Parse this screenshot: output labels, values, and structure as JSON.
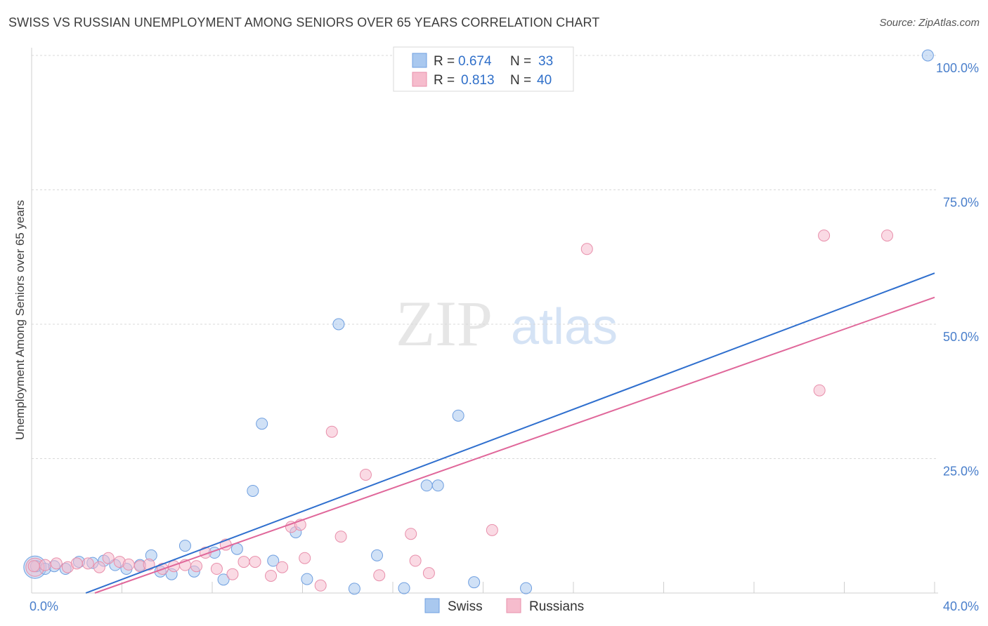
{
  "header": {
    "title": "SWISS VS RUSSIAN UNEMPLOYMENT AMONG SENIORS OVER 65 YEARS CORRELATION CHART",
    "source": "Source: ZipAtlas.com"
  },
  "watermark": {
    "zip": "ZIP",
    "atlas": "atlas"
  },
  "legend": {
    "r_label": "R =",
    "n_label": "N =",
    "items": [
      {
        "name": "Swiss",
        "r": "0.674",
        "n": "33",
        "color": "#a9c8ef"
      },
      {
        "name": "Russians",
        "r": "0.813",
        "n": "40",
        "color": "#f6bccd"
      }
    ]
  },
  "colors": {
    "swiss_fill": "#a9c8ef",
    "swiss_stroke": "#6f9fe0",
    "swiss_line": "#2f6fce",
    "russians_fill": "#f6bccd",
    "russians_stroke": "#e88fab",
    "russians_line": "#e0679a",
    "tick_text": "#4a7fcb",
    "grid": "#d9d9d9"
  },
  "chart_data": {
    "type": "scatter",
    "title": "SWISS VS RUSSIAN UNEMPLOYMENT AMONG SENIORS OVER 65 YEARS CORRELATION CHART",
    "xlabel": "",
    "ylabel": "Unemployment Among Seniors over 65 years",
    "xlim": [
      0,
      40
    ],
    "ylim": [
      0,
      100
    ],
    "x_tick_labels": [
      {
        "value": 0,
        "label": "0.0%"
      },
      {
        "value": 40,
        "label": "40.0%"
      }
    ],
    "y_tick_labels": [
      {
        "value": 25,
        "label": "25.0%"
      },
      {
        "value": 50,
        "label": "50.0%"
      },
      {
        "value": 75,
        "label": "75.0%"
      },
      {
        "value": 100,
        "label": "100.0%"
      }
    ],
    "x_minor_ticks": [
      0,
      4,
      8,
      12,
      16,
      20,
      24,
      28,
      32,
      36,
      40
    ],
    "y_gridlines": [
      25,
      50,
      75,
      100
    ],
    "series": [
      {
        "name": "Swiss",
        "points": [
          [
            0.2,
            5.0
          ],
          [
            0.6,
            4.5
          ],
          [
            1.0,
            5.0
          ],
          [
            1.5,
            4.5
          ],
          [
            2.1,
            5.8
          ],
          [
            2.7,
            5.6
          ],
          [
            3.2,
            6.0
          ],
          [
            3.7,
            5.2
          ],
          [
            4.2,
            4.5
          ],
          [
            4.8,
            5.2
          ],
          [
            5.3,
            7.0
          ],
          [
            5.7,
            4.0
          ],
          [
            6.2,
            3.5
          ],
          [
            6.8,
            8.8
          ],
          [
            7.2,
            4.0
          ],
          [
            8.1,
            7.5
          ],
          [
            8.5,
            2.5
          ],
          [
            9.1,
            8.2
          ],
          [
            9.8,
            19.0
          ],
          [
            10.2,
            31.5
          ],
          [
            10.7,
            6.0
          ],
          [
            11.7,
            11.3
          ],
          [
            12.2,
            2.6
          ],
          [
            13.6,
            50.0
          ],
          [
            14.3,
            0.8
          ],
          [
            15.3,
            7.0
          ],
          [
            16.5,
            0.9
          ],
          [
            17.5,
            20.0
          ],
          [
            18.0,
            20.0
          ],
          [
            18.9,
            33.0
          ],
          [
            19.6,
            2.0
          ],
          [
            21.9,
            0.9
          ],
          [
            39.7,
            100.0
          ]
        ],
        "trend": {
          "x": [
            2.4,
            40
          ],
          "y": [
            0,
            59.5
          ]
        }
      },
      {
        "name": "Russians",
        "points": [
          [
            0.1,
            5.0
          ],
          [
            0.6,
            5.2
          ],
          [
            1.1,
            5.5
          ],
          [
            1.6,
            4.8
          ],
          [
            2.0,
            5.5
          ],
          [
            2.5,
            5.5
          ],
          [
            3.0,
            4.8
          ],
          [
            3.4,
            6.5
          ],
          [
            3.9,
            5.8
          ],
          [
            4.3,
            5.3
          ],
          [
            4.8,
            5.0
          ],
          [
            5.2,
            5.3
          ],
          [
            5.8,
            4.5
          ],
          [
            6.3,
            5.0
          ],
          [
            6.8,
            5.2
          ],
          [
            7.3,
            5.0
          ],
          [
            7.7,
            7.5
          ],
          [
            8.2,
            4.5
          ],
          [
            8.6,
            9.0
          ],
          [
            8.9,
            3.5
          ],
          [
            9.4,
            5.8
          ],
          [
            9.9,
            5.8
          ],
          [
            10.6,
            3.2
          ],
          [
            11.1,
            4.8
          ],
          [
            11.5,
            12.3
          ],
          [
            11.9,
            12.7
          ],
          [
            12.1,
            6.5
          ],
          [
            12.8,
            1.4
          ],
          [
            13.3,
            30.0
          ],
          [
            13.7,
            10.5
          ],
          [
            14.8,
            22.0
          ],
          [
            15.4,
            3.3
          ],
          [
            16.8,
            11.0
          ],
          [
            17.0,
            6.0
          ],
          [
            17.6,
            3.7
          ],
          [
            20.4,
            11.7
          ],
          [
            24.6,
            64.0
          ],
          [
            34.9,
            37.7
          ],
          [
            35.1,
            66.5
          ],
          [
            37.9,
            66.5
          ]
        ],
        "trend": {
          "x": [
            2.8,
            40
          ],
          "y": [
            0,
            55.0
          ]
        }
      }
    ]
  },
  "bottom_legend": {
    "items": [
      "Swiss",
      "Russians"
    ]
  }
}
